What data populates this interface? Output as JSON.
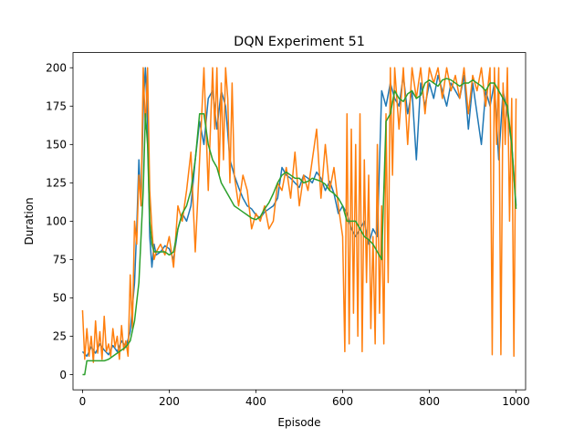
{
  "chart_data": {
    "type": "line",
    "title": "DQN Experiment 51",
    "xlabel": "Episode",
    "ylabel": "Duration",
    "xlim": [
      -22,
      1022
    ],
    "ylim": [
      -9.9,
      209.9
    ],
    "xticks": [
      0,
      200,
      400,
      600,
      800,
      1000
    ],
    "yticks": [
      0,
      25,
      50,
      75,
      100,
      125,
      150,
      175,
      200
    ],
    "grid": false,
    "legend": "none",
    "series": [
      {
        "color": "#1f77b4",
        "x": [
          0,
          10,
          20,
          30,
          40,
          50,
          60,
          70,
          80,
          90,
          100,
          110,
          120,
          125,
          130,
          135,
          140,
          145,
          150,
          155,
          160,
          165,
          170,
          180,
          190,
          200,
          210,
          220,
          230,
          240,
          250,
          260,
          270,
          280,
          290,
          300,
          310,
          320,
          330,
          340,
          350,
          360,
          370,
          380,
          390,
          400,
          410,
          420,
          430,
          440,
          450,
          460,
          470,
          480,
          490,
          500,
          510,
          520,
          530,
          540,
          550,
          560,
          570,
          580,
          590,
          600,
          610,
          620,
          630,
          640,
          650,
          660,
          670,
          680,
          690,
          700,
          710,
          720,
          730,
          740,
          750,
          760,
          770,
          780,
          790,
          800,
          810,
          820,
          830,
          840,
          850,
          860,
          870,
          880,
          890,
          900,
          910,
          920,
          930,
          940,
          950,
          960,
          970,
          980,
          990,
          1000
        ],
        "y": [
          15,
          12,
          18,
          14,
          20,
          16,
          13,
          19,
          15,
          22,
          18,
          28,
          60,
          95,
          140,
          110,
          175,
          200,
          165,
          90,
          70,
          85,
          78,
          80,
          84,
          82,
          75,
          95,
          105,
          100,
          110,
          140,
          165,
          150,
          180,
          185,
          160,
          185,
          175,
          140,
          130,
          122,
          115,
          110,
          108,
          104,
          102,
          106,
          108,
          110,
          115,
          135,
          130,
          128,
          125,
          122,
          130,
          128,
          125,
          132,
          128,
          120,
          126,
          118,
          105,
          110,
          105,
          95,
          90,
          95,
          100,
          85,
          95,
          90,
          185,
          175,
          190,
          180,
          175,
          195,
          170,
          185,
          140,
          190,
          175,
          190,
          180,
          195,
          185,
          175,
          190,
          185,
          180,
          195,
          160,
          190,
          170,
          150,
          185,
          175,
          190,
          140,
          185,
          170,
          150,
          110
        ]
      },
      {
        "color": "#ff7f0e",
        "x": [
          0,
          5,
          10,
          15,
          20,
          25,
          30,
          35,
          40,
          45,
          50,
          55,
          60,
          65,
          70,
          75,
          80,
          85,
          90,
          95,
          100,
          105,
          110,
          115,
          120,
          125,
          130,
          135,
          140,
          145,
          150,
          155,
          160,
          165,
          170,
          180,
          190,
          200,
          210,
          220,
          230,
          240,
          250,
          260,
          270,
          280,
          290,
          300,
          305,
          310,
          315,
          320,
          325,
          330,
          335,
          340,
          345,
          350,
          360,
          370,
          380,
          390,
          400,
          410,
          420,
          430,
          440,
          450,
          460,
          470,
          480,
          490,
          500,
          510,
          520,
          530,
          540,
          550,
          560,
          570,
          580,
          590,
          600,
          605,
          610,
          615,
          620,
          625,
          630,
          635,
          640,
          645,
          650,
          655,
          660,
          665,
          670,
          675,
          680,
          685,
          690,
          695,
          700,
          705,
          710,
          715,
          720,
          730,
          740,
          750,
          760,
          770,
          780,
          790,
          800,
          810,
          820,
          830,
          840,
          850,
          860,
          870,
          880,
          890,
          900,
          910,
          920,
          930,
          940,
          945,
          950,
          955,
          960,
          965,
          970,
          975,
          980,
          985,
          990,
          995,
          1000
        ],
        "y": [
          42,
          10,
          30,
          12,
          25,
          8,
          35,
          14,
          28,
          10,
          38,
          15,
          20,
          12,
          30,
          18,
          25,
          10,
          32,
          16,
          22,
          12,
          65,
          30,
          100,
          85,
          130,
          110,
          200,
          160,
          200,
          120,
          95,
          75,
          80,
          85,
          78,
          90,
          70,
          110,
          100,
          120,
          145,
          80,
          140,
          200,
          120,
          200,
          160,
          200,
          130,
          190,
          140,
          200,
          180,
          125,
          190,
          130,
          110,
          130,
          120,
          95,
          105,
          100,
          110,
          95,
          100,
          125,
          120,
          135,
          115,
          145,
          110,
          130,
          120,
          140,
          160,
          115,
          150,
          120,
          135,
          110,
          90,
          15,
          170,
          20,
          160,
          40,
          150,
          25,
          170,
          15,
          140,
          60,
          130,
          30,
          90,
          20,
          150,
          40,
          110,
          20,
          170,
          60,
          200,
          130,
          200,
          160,
          200,
          150,
          200,
          180,
          200,
          170,
          200,
          190,
          200,
          180,
          200,
          185,
          195,
          180,
          200,
          170,
          195,
          185,
          200,
          175,
          200,
          13,
          200,
          150,
          200,
          13,
          190,
          150,
          200,
          100,
          180,
          12,
          180
        ]
      },
      {
        "color": "#2ca02c",
        "x": [
          0,
          5,
          10,
          20,
          30,
          40,
          50,
          60,
          70,
          80,
          90,
          100,
          110,
          120,
          130,
          140,
          145,
          150,
          155,
          160,
          165,
          170,
          180,
          190,
          200,
          210,
          220,
          230,
          240,
          250,
          260,
          270,
          280,
          290,
          300,
          310,
          320,
          330,
          340,
          350,
          360,
          370,
          380,
          390,
          400,
          410,
          420,
          430,
          440,
          450,
          460,
          470,
          480,
          490,
          500,
          510,
          520,
          530,
          540,
          550,
          560,
          570,
          580,
          590,
          600,
          610,
          620,
          630,
          640,
          650,
          660,
          670,
          680,
          690,
          700,
          710,
          720,
          730,
          740,
          750,
          760,
          770,
          780,
          790,
          800,
          810,
          820,
          830,
          840,
          850,
          860,
          870,
          880,
          890,
          900,
          910,
          920,
          930,
          940,
          950,
          960,
          970,
          980,
          990,
          1000
        ],
        "y": [
          0,
          0,
          9,
          9,
          9,
          9,
          9,
          10,
          12,
          14,
          16,
          18,
          22,
          35,
          60,
          120,
          170,
          150,
          100,
          85,
          80,
          80,
          80,
          80,
          78,
          80,
          95,
          105,
          110,
          120,
          140,
          170,
          170,
          150,
          140,
          135,
          125,
          120,
          115,
          110,
          108,
          106,
          104,
          102,
          101,
          103,
          108,
          112,
          118,
          125,
          130,
          132,
          130,
          128,
          128,
          125,
          126,
          128,
          127,
          126,
          124,
          120,
          118,
          115,
          110,
          100,
          100,
          100,
          95,
          90,
          88,
          85,
          80,
          75,
          165,
          170,
          185,
          180,
          178,
          183,
          185,
          180,
          182,
          190,
          192,
          190,
          188,
          192,
          193,
          192,
          190,
          188,
          190,
          190,
          192,
          190,
          188,
          185,
          190,
          190,
          185,
          180,
          175,
          150,
          108
        ]
      }
    ]
  }
}
